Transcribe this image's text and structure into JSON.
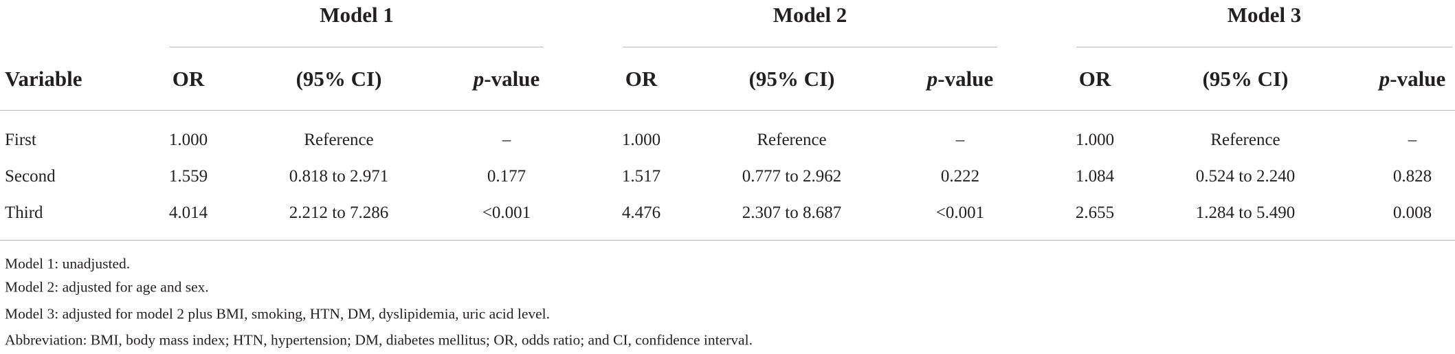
{
  "table": {
    "row_header": "Variable",
    "groups": [
      {
        "title": "Model 1",
        "columns": [
          "OR",
          "(95% CI)",
          [
            "p",
            "-value"
          ]
        ]
      },
      {
        "title": "Model 2",
        "columns": [
          "OR",
          "(95% CI)",
          [
            "p",
            "-value"
          ]
        ]
      },
      {
        "title": "Model 3",
        "columns": [
          "OR",
          "(95% CI)",
          [
            "p",
            "-value"
          ]
        ]
      }
    ],
    "rows": [
      {
        "variable": "First",
        "cells": [
          "1.000",
          "Reference",
          "–",
          "1.000",
          "Reference",
          "–",
          "1.000",
          "Reference",
          "–"
        ]
      },
      {
        "variable": "Second",
        "cells": [
          "1.559",
          "0.818 to 2.971",
          "0.177",
          "1.517",
          "0.777 to 2.962",
          "0.222",
          "1.084",
          "0.524 to 2.240",
          "0.828"
        ]
      },
      {
        "variable": "Third",
        "cells": [
          "4.014",
          "2.212 to 7.286",
          "<0.001",
          "4.476",
          "2.307 to 8.687",
          "<0.001",
          "2.655",
          "1.284 to 5.490",
          "0.008"
        ]
      }
    ]
  },
  "notes": [
    "Model 1: unadjusted.",
    "Model 2: adjusted for age and sex.",
    "Model 3: adjusted for model 2 plus BMI, smoking, HTN, DM, dyslipidemia, uric acid level.",
    "Abbreviation: BMI, body mass index; HTN, hypertension; DM, diabetes mellitus; OR, odds ratio; and CI, confidence interval."
  ]
}
